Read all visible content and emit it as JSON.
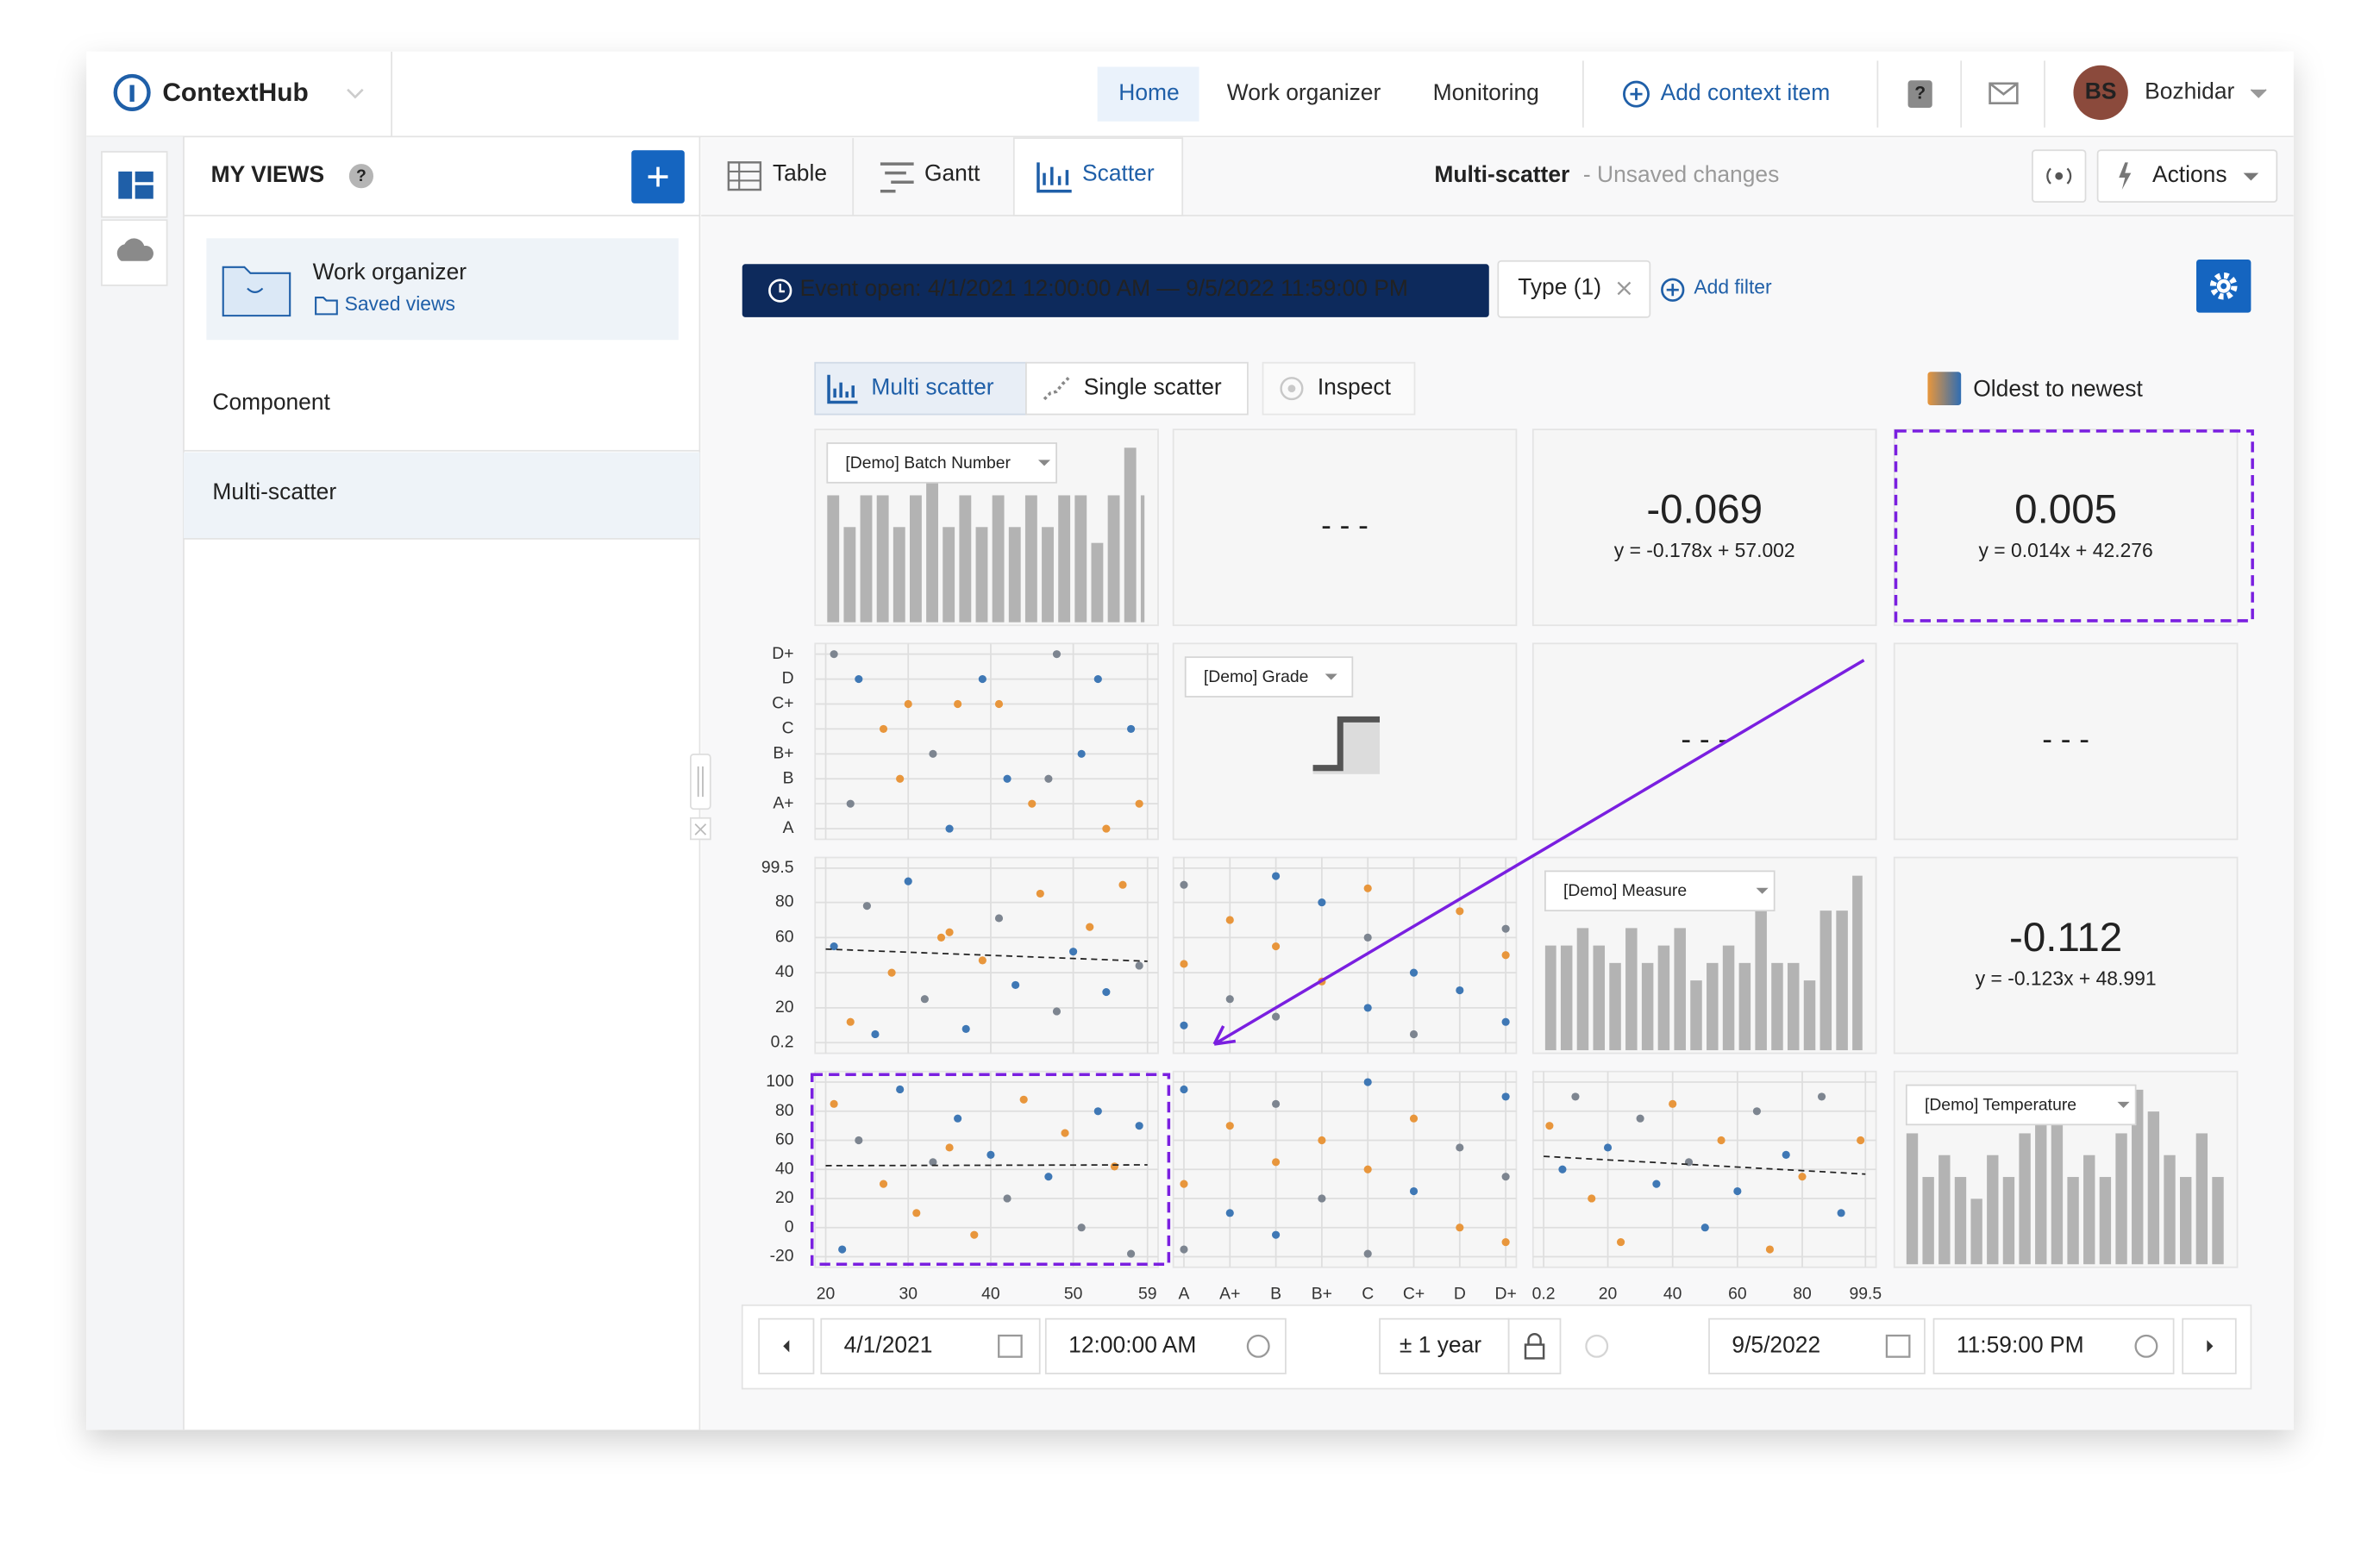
{
  "header": {
    "app_name": "ContextHub",
    "nav": [
      "Home",
      "Work organizer",
      "Monitoring"
    ],
    "add_item": "Add context item",
    "user_initials": "BS",
    "user_name": "Bozhidar"
  },
  "sidebar": {
    "title": "MY VIEWS",
    "folder_title": "Work organizer",
    "folder_link": "Saved views",
    "items": [
      "Component",
      "Multi-scatter"
    ]
  },
  "toolbar": {
    "tabs": [
      "Table",
      "Gantt",
      "Scatter"
    ],
    "view_name": "Multi-scatter",
    "status": "- Unsaved changes",
    "actions": "Actions"
  },
  "filters": {
    "event": "Event open: 4/1/2021 12:00:00 AM — 9/5/2022 11:59:00 PM",
    "type": "Type (1)",
    "add": "Add filter"
  },
  "modes": [
    "Multi scatter",
    "Single scatter",
    "Inspect"
  ],
  "chart_data": {
    "type": "scatter_matrix",
    "legend": "Oldest to newest",
    "variables": [
      {
        "name": "[Demo] Batch Number",
        "lim": [
          20,
          59
        ],
        "ticks": [
          20,
          30,
          40,
          50,
          59
        ],
        "bins": [
          20,
          22,
          24,
          26,
          28,
          30,
          32,
          34,
          36,
          38,
          40,
          42,
          44,
          46,
          48,
          50,
          52,
          54,
          56,
          58,
          59
        ],
        "counts": [
          8,
          6,
          8,
          8,
          6,
          8,
          11,
          6,
          8,
          6,
          8,
          6,
          8,
          6,
          8,
          8,
          5,
          8,
          11,
          8
        ]
      },
      {
        "name": "[Demo] Grade",
        "categories": [
          "A",
          "A+",
          "B",
          "B+",
          "C",
          "C+",
          "D",
          "D+"
        ]
      },
      {
        "name": "[Demo] Measure",
        "lim": [
          0.2,
          99.5
        ],
        "ticks": [
          0.2,
          20,
          40,
          60,
          80,
          99.5
        ],
        "bins": [
          0.2,
          5,
          10,
          15,
          20,
          25,
          30,
          35,
          40,
          45,
          50,
          55,
          60,
          65,
          70,
          75,
          80,
          85,
          90,
          95,
          99.5
        ],
        "counts": [
          6,
          6,
          7,
          6,
          5,
          7,
          5,
          6,
          7,
          4,
          5,
          6,
          5,
          9,
          5,
          5,
          4,
          8,
          8,
          10
        ]
      },
      {
        "name": "[Demo] Temperature",
        "lim": [
          -20,
          100
        ],
        "ticks": [
          -20,
          0,
          20,
          40,
          60,
          80,
          100
        ],
        "bins": [
          -20,
          -14,
          -8,
          -2,
          4,
          10,
          16,
          22,
          28,
          34,
          40,
          46,
          52,
          58,
          64,
          70,
          76,
          82,
          88,
          94,
          100
        ],
        "counts": [
          6,
          4,
          5,
          4,
          3,
          5,
          4,
          6,
          8,
          8,
          4,
          5,
          4,
          6,
          8,
          7,
          5,
          4,
          6,
          4
        ]
      }
    ],
    "correlations": [
      {
        "label": "- - -"
      },
      {
        "value": -0.069,
        "equation": "y = -0.178x + 57.002",
        "slope": -0.178,
        "intercept": 57.002
      },
      {
        "value": 0.005,
        "equation": "y = 0.014x + 42.276",
        "slope": 0.014,
        "intercept": 42.276
      },
      {
        "label": "- - -"
      },
      {
        "label": "- - -"
      },
      {
        "value": -0.112,
        "equation": "y = -0.123x + 48.991",
        "slope": -0.123,
        "intercept": 48.991
      }
    ],
    "scatters": [
      {
        "x": [
          21,
          24,
          27,
          30,
          33,
          36,
          39,
          42,
          45,
          48,
          51,
          54,
          57,
          23,
          29,
          35,
          41,
          47,
          53,
          58
        ],
        "y": [
          "D+",
          "D",
          "C",
          "C+",
          "B+",
          "C+",
          "D",
          "B",
          "A+",
          "D+",
          "B+",
          "A",
          "C",
          "A+",
          "B",
          "A",
          "C+",
          "B",
          "D",
          "A+"
        ],
        "colors": [
          "#7d8590",
          "#3f78b5",
          "#e8963c",
          "#e8963c",
          "#7d8590",
          "#e8963c",
          "#3f78b5",
          "#3f78b5",
          "#e8963c",
          "#7d8590",
          "#3f78b5",
          "#e8963c",
          "#3f78b5",
          "#7d8590",
          "#e8963c",
          "#3f78b5",
          "#e8963c",
          "#7d8590",
          "#3f78b5",
          "#e8963c"
        ]
      },
      {
        "x": [
          21,
          23,
          25,
          28,
          30,
          32,
          35,
          37,
          39,
          41,
          43,
          46,
          48,
          50,
          52,
          54,
          56,
          58,
          26,
          34
        ],
        "y": [
          55,
          12,
          78,
          40,
          92,
          25,
          63,
          8,
          47,
          71,
          33,
          85,
          18,
          52,
          66,
          29,
          90,
          44,
          5,
          60
        ],
        "colors": [
          "#3f78b5",
          "#e8963c",
          "#7d8590",
          "#e8963c",
          "#3f78b5",
          "#7d8590",
          "#e8963c",
          "#3f78b5",
          "#e8963c",
          "#7d8590",
          "#3f78b5",
          "#e8963c",
          "#7d8590",
          "#3f78b5",
          "#e8963c",
          "#3f78b5",
          "#e8963c",
          "#7d8590",
          "#3f78b5",
          "#e8963c"
        ]
      },
      {
        "x": [
          "A",
          "A",
          "A",
          "A+",
          "A+",
          "B",
          "B",
          "B",
          "B+",
          "B+",
          "C",
          "C",
          "C",
          "C+",
          "C+",
          "D",
          "D",
          "D+",
          "D+",
          "D+"
        ],
        "y": [
          90,
          45,
          10,
          70,
          25,
          95,
          55,
          15,
          80,
          35,
          60,
          20,
          88,
          40,
          5,
          75,
          30,
          65,
          50,
          12
        ],
        "colors": [
          "#7d8590",
          "#e8963c",
          "#3f78b5",
          "#e8963c",
          "#7d8590",
          "#3f78b5",
          "#e8963c",
          "#7d8590",
          "#3f78b5",
          "#e8963c",
          "#7d8590",
          "#3f78b5",
          "#e8963c",
          "#3f78b5",
          "#7d8590",
          "#e8963c",
          "#3f78b5",
          "#7d8590",
          "#e8963c",
          "#3f78b5"
        ]
      },
      {
        "x": [
          21,
          22,
          24,
          27,
          29,
          31,
          33,
          36,
          38,
          40,
          42,
          44,
          47,
          49,
          51,
          53,
          55,
          57,
          58,
          35
        ],
        "y": [
          85,
          -15,
          60,
          30,
          95,
          10,
          45,
          75,
          -5,
          50,
          20,
          88,
          35,
          65,
          0,
          80,
          42,
          -18,
          70,
          55
        ],
        "colors": [
          "#e8963c",
          "#3f78b5",
          "#7d8590",
          "#e8963c",
          "#3f78b5",
          "#e8963c",
          "#7d8590",
          "#3f78b5",
          "#e8963c",
          "#3f78b5",
          "#7d8590",
          "#e8963c",
          "#3f78b5",
          "#e8963c",
          "#7d8590",
          "#3f78b5",
          "#e8963c",
          "#7d8590",
          "#3f78b5",
          "#e8963c"
        ]
      },
      {
        "x": [
          "A",
          "A",
          "A",
          "A+",
          "A+",
          "B",
          "B",
          "B",
          "B+",
          "B+",
          "C",
          "C",
          "C",
          "C+",
          "C+",
          "D",
          "D",
          "D+",
          "D+",
          "D+"
        ],
        "y": [
          95,
          30,
          -15,
          70,
          10,
          85,
          45,
          -5,
          60,
          20,
          100,
          40,
          -18,
          75,
          25,
          55,
          0,
          90,
          35,
          -10
        ],
        "colors": [
          "#3f78b5",
          "#e8963c",
          "#7d8590",
          "#e8963c",
          "#3f78b5",
          "#7d8590",
          "#e8963c",
          "#3f78b5",
          "#e8963c",
          "#7d8590",
          "#3f78b5",
          "#e8963c",
          "#7d8590",
          "#e8963c",
          "#3f78b5",
          "#7d8590",
          "#e8963c",
          "#3f78b5",
          "#7d8590",
          "#e8963c"
        ]
      },
      {
        "x": [
          2,
          6,
          10,
          15,
          20,
          24,
          30,
          35,
          40,
          45,
          50,
          55,
          60,
          66,
          70,
          75,
          80,
          86,
          92,
          98
        ],
        "y": [
          70,
          40,
          90,
          20,
          55,
          -10,
          75,
          30,
          85,
          45,
          0,
          60,
          25,
          80,
          -15,
          50,
          35,
          90,
          10,
          60
        ],
        "colors": [
          "#e8963c",
          "#3f78b5",
          "#7d8590",
          "#e8963c",
          "#3f78b5",
          "#e8963c",
          "#7d8590",
          "#3f78b5",
          "#e8963c",
          "#7d8590",
          "#3f78b5",
          "#e8963c",
          "#3f78b5",
          "#7d8590",
          "#e8963c",
          "#3f78b5",
          "#e8963c",
          "#7d8590",
          "#3f78b5",
          "#e8963c"
        ]
      }
    ]
  },
  "footer": {
    "start_date": "4/1/2021",
    "start_time": "12:00:00 AM",
    "range": "± 1 year",
    "end_date": "9/5/2022",
    "end_time": "11:59:00 PM"
  }
}
